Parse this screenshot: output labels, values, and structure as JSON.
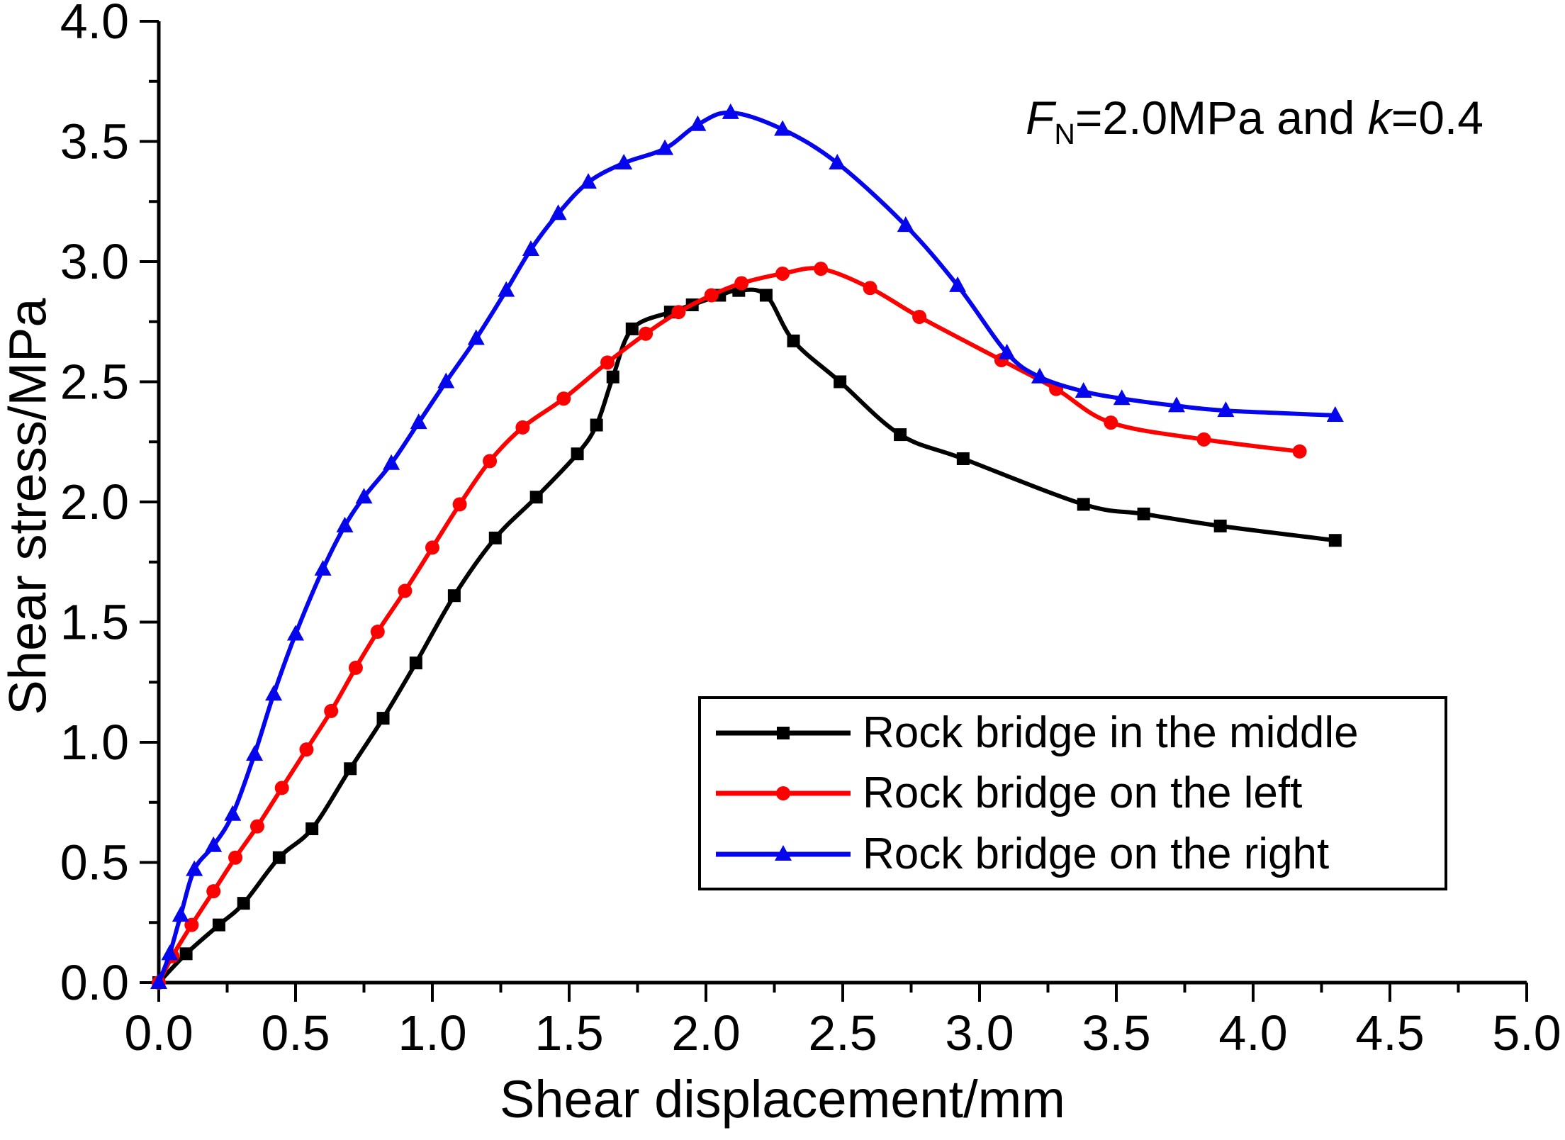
{
  "chart_data": {
    "type": "line",
    "title": "",
    "xlabel": "Shear displacement/mm",
    "ylabel": "Shear stress/MPa",
    "xlim": [
      0.0,
      5.0
    ],
    "ylim": [
      0.0,
      4.0
    ],
    "x_major_step": 0.5,
    "x_minor_step": 0.25,
    "y_major_step": 0.5,
    "y_minor_step": 0.25,
    "x_tick_labels": [
      "0.0",
      "0.5",
      "1.0",
      "1.5",
      "2.0",
      "2.5",
      "3.0",
      "3.5",
      "4.0",
      "4.5",
      "5.0"
    ],
    "y_tick_labels": [
      "0.0",
      "0.5",
      "1.0",
      "1.5",
      "2.0",
      "2.5",
      "3.0",
      "3.5",
      "4.0"
    ],
    "grid": false,
    "legend_position": "lower-right-inside",
    "annotation": {
      "var1": "F",
      "sub1": "N",
      "mid": "=2.0MPa and ",
      "var2": "k",
      "tail": "=0.4"
    },
    "axis_color": "#000000",
    "series": [
      {
        "name": "Rock bridge in the middle",
        "color": "#000000",
        "marker": "square",
        "x": [
          0,
          0.1,
          0.22,
          0.31,
          0.44,
          0.56,
          0.7,
          0.82,
          0.94,
          1.08,
          1.23,
          1.38,
          1.53,
          1.6,
          1.66,
          1.73,
          1.87,
          1.95,
          2.05,
          2.12,
          2.22,
          2.32,
          2.49,
          2.71,
          2.94,
          3.38,
          3.6,
          3.88,
          4.3
        ],
        "y": [
          0,
          0.12,
          0.24,
          0.33,
          0.52,
          0.64,
          0.89,
          1.1,
          1.33,
          1.61,
          1.85,
          2.02,
          2.2,
          2.32,
          2.52,
          2.72,
          2.79,
          2.82,
          2.86,
          2.88,
          2.86,
          2.67,
          2.5,
          2.28,
          2.18,
          1.99,
          1.95,
          1.9,
          1.84
        ]
      },
      {
        "name": "Rock bridge on the left",
        "color": "#FF0000",
        "marker": "circle",
        "x": [
          0,
          0.05,
          0.12,
          0.2,
          0.28,
          0.36,
          0.45,
          0.54,
          0.63,
          0.72,
          0.8,
          0.9,
          1.0,
          1.1,
          1.21,
          1.33,
          1.48,
          1.64,
          1.78,
          1.9,
          2.02,
          2.13,
          2.28,
          2.42,
          2.6,
          2.78,
          3.08,
          3.28,
          3.48,
          3.82,
          4.17
        ],
        "y": [
          0,
          0.11,
          0.24,
          0.38,
          0.52,
          0.65,
          0.81,
          0.97,
          1.13,
          1.31,
          1.46,
          1.63,
          1.81,
          1.99,
          2.17,
          2.31,
          2.43,
          2.58,
          2.7,
          2.79,
          2.86,
          2.91,
          2.95,
          2.97,
          2.89,
          2.77,
          2.59,
          2.47,
          2.33,
          2.26,
          2.21
        ]
      },
      {
        "name": "Rock bridge on the right",
        "color": "#0505EE",
        "marker": "triangle",
        "x": [
          0,
          0.04,
          0.08,
          0.13,
          0.2,
          0.27,
          0.35,
          0.42,
          0.5,
          0.6,
          0.68,
          0.75,
          0.85,
          0.95,
          1.05,
          1.16,
          1.27,
          1.36,
          1.46,
          1.57,
          1.7,
          1.85,
          1.97,
          2.09,
          2.28,
          2.48,
          2.73,
          2.92,
          3.1,
          3.22,
          3.38,
          3.52,
          3.72,
          3.9,
          4.3
        ],
        "y": [
          0,
          0.12,
          0.28,
          0.47,
          0.57,
          0.7,
          0.95,
          1.2,
          1.45,
          1.72,
          1.9,
          2.02,
          2.16,
          2.33,
          2.5,
          2.68,
          2.88,
          3.05,
          3.2,
          3.33,
          3.41,
          3.47,
          3.57,
          3.62,
          3.55,
          3.41,
          3.15,
          2.9,
          2.62,
          2.52,
          2.46,
          2.43,
          2.4,
          2.38,
          2.36
        ]
      }
    ]
  }
}
